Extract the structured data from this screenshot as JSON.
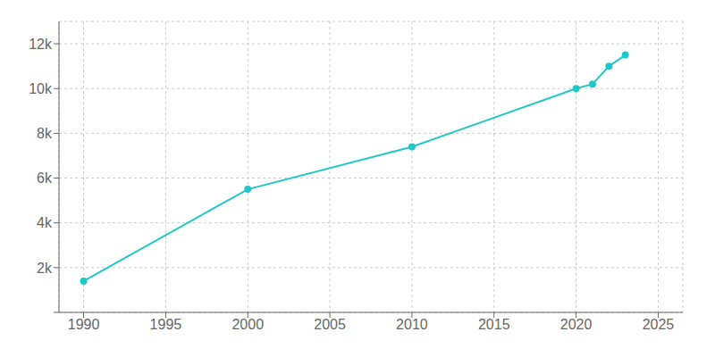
{
  "chart_data": {
    "type": "line",
    "x": [
      1990,
      2000,
      2010,
      2020,
      2021,
      2022,
      2023
    ],
    "values": [
      1400,
      5500,
      7400,
      10000,
      10200,
      11000,
      11500
    ],
    "color": "#20C8C8",
    "marker": "circle",
    "xlim": [
      1988.5,
      2026.5
    ],
    "ylim": [
      0,
      13000
    ],
    "xticks": [
      1990,
      1995,
      2000,
      2005,
      2010,
      2015,
      2020,
      2025
    ],
    "yticks": [
      {
        "value": 0,
        "label": ""
      },
      {
        "value": 2000,
        "label": "2k"
      },
      {
        "value": 4000,
        "label": "4k"
      },
      {
        "value": 6000,
        "label": "6k"
      },
      {
        "value": 8000,
        "label": "8k"
      },
      {
        "value": 10000,
        "label": "10k"
      },
      {
        "value": 12000,
        "label": "12k"
      }
    ],
    "grid": true
  }
}
